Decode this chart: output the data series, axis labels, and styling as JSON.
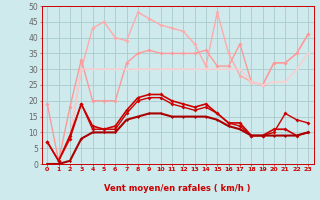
{
  "xlabel": "Vent moyen/en rafales ( km/h )",
  "bg_color": "#ceeaec",
  "grid_color": "#aacccc",
  "x": [
    0,
    1,
    2,
    3,
    4,
    5,
    6,
    7,
    8,
    9,
    10,
    11,
    12,
    13,
    14,
    15,
    16,
    17,
    18,
    19,
    20,
    21,
    22,
    23
  ],
  "lines": [
    {
      "y": [
        7,
        1,
        8,
        19,
        11,
        11,
        11,
        16,
        20,
        21,
        21,
        19,
        18,
        17,
        18,
        16,
        13,
        12,
        9,
        9,
        10,
        16,
        14,
        13
      ],
      "color": "#cc0000",
      "lw": 1.0,
      "ms": 2.0
    },
    {
      "y": [
        7,
        1,
        9,
        19,
        12,
        11,
        12,
        17,
        21,
        22,
        22,
        20,
        19,
        18,
        19,
        16,
        13,
        13,
        9,
        9,
        11,
        11,
        9,
        10
      ],
      "color": "#cc0000",
      "lw": 1.2,
      "ms": 2.0
    },
    {
      "y": [
        0,
        0,
        1,
        8,
        10,
        10,
        10,
        14,
        15,
        16,
        16,
        15,
        15,
        15,
        15,
        14,
        12,
        11,
        9,
        9,
        9,
        9,
        9,
        10
      ],
      "color": "#aa0000",
      "lw": 1.5,
      "ms": 1.5
    },
    {
      "y": [
        7,
        1,
        8,
        30,
        43,
        45,
        40,
        39,
        48,
        46,
        44,
        43,
        42,
        38,
        31,
        48,
        35,
        28,
        26,
        25,
        32,
        32,
        35,
        41
      ],
      "color": "#ffaaaa",
      "lw": 1.0,
      "ms": 2.0
    },
    {
      "y": [
        19,
        1,
        18,
        33,
        20,
        20,
        20,
        32,
        35,
        36,
        35,
        35,
        35,
        35,
        36,
        31,
        31,
        38,
        26,
        25,
        32,
        32,
        35,
        41
      ],
      "color": "#ff9999",
      "lw": 1.0,
      "ms": 2.0
    },
    {
      "y": [
        7,
        1,
        8,
        30,
        30,
        30,
        30,
        30,
        30,
        30,
        30,
        30,
        30,
        30,
        30,
        30,
        30,
        30,
        26,
        25,
        26,
        26,
        30,
        35
      ],
      "color": "#ffcccc",
      "lw": 1.0,
      "ms": 1.5
    }
  ],
  "ylim": [
    0,
    50
  ],
  "xlim": [
    -0.5,
    23.5
  ],
  "yticks": [
    0,
    5,
    10,
    15,
    20,
    25,
    30,
    35,
    40,
    45,
    50
  ],
  "xticks": [
    0,
    1,
    2,
    3,
    4,
    5,
    6,
    7,
    8,
    9,
    10,
    11,
    12,
    13,
    14,
    15,
    16,
    17,
    18,
    19,
    20,
    21,
    22,
    23
  ]
}
